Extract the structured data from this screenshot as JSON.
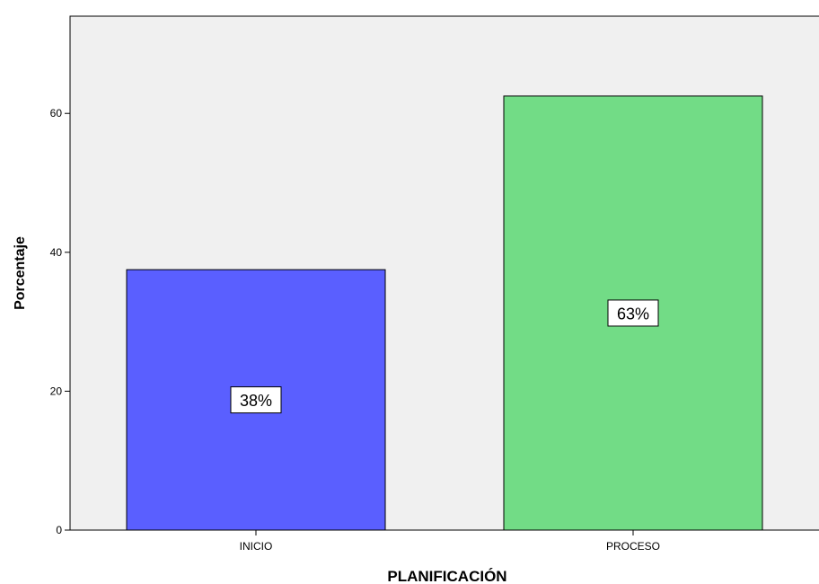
{
  "chart_data": {
    "type": "bar",
    "categories": [
      "INICIO",
      "PROCESO"
    ],
    "values": [
      37.5,
      62.5
    ],
    "data_labels": [
      "38%",
      "63%"
    ],
    "colors": [
      "#5a5fff",
      "#72dc86"
    ],
    "xlabel": "PLANIFICACIÓN",
    "ylabel": "Porcentaje",
    "ylim": [
      0,
      74
    ],
    "yticks": [
      0,
      20,
      40,
      60
    ],
    "grid": false,
    "plot_background": "#f0f0f0"
  }
}
